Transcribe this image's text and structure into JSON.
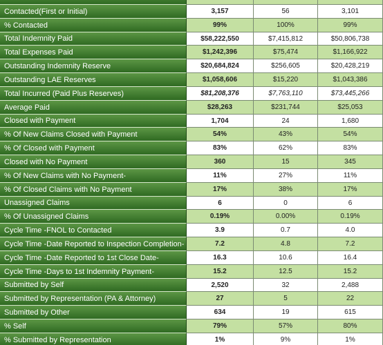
{
  "table": {
    "rows": [
      [
        "Contacted(First or Initial)",
        "3,157",
        "56",
        "3,101"
      ],
      [
        "% Contacted",
        "99%",
        "100%",
        "99%"
      ],
      [
        "Total Indemnity Paid",
        "$58,222,550",
        "$7,415,812",
        "$50,806,738"
      ],
      [
        "Total Expenses Paid",
        "$1,242,396",
        "$75,474",
        "$1,166,922"
      ],
      [
        "Outstanding Indemnity Reserve",
        "$20,684,824",
        "$256,605",
        "$20,428,219"
      ],
      [
        "Outstanding LAE Reserves",
        "$1,058,606",
        "$15,220",
        "$1,043,386"
      ],
      [
        "Total Incurred (Paid Plus Reserves)",
        "$81,208,376",
        "$7,763,110",
        "$73,445,266"
      ],
      [
        "Average Paid",
        "$28,263",
        "$231,744",
        "$25,053"
      ],
      [
        "Closed with Payment",
        "1,704",
        "24",
        "1,680"
      ],
      [
        "% Of New Claims Closed with Payment",
        "54%",
        "43%",
        "54%"
      ],
      [
        "% Of Closed with Payment",
        "83%",
        "62%",
        "83%"
      ],
      [
        "Closed with No Payment",
        "360",
        "15",
        "345"
      ],
      [
        "% Of New Claims with No Payment-",
        "11%",
        "27%",
        "11%"
      ],
      [
        "% Of Closed Claims with No Payment",
        "17%",
        "38%",
        "17%"
      ],
      [
        "Unassigned Claims",
        "6",
        "0",
        "6"
      ],
      [
        "% Of Unassigned Claims",
        "0.19%",
        "0.00%",
        "0.19%"
      ],
      [
        "Cycle Time -FNOL to Contacted",
        "3.9",
        "0.7",
        "4.0"
      ],
      [
        "Cycle Time -Date Reported to Inspection Completion-",
        "7.2",
        "4.8",
        "7.2"
      ],
      [
        "Cycle Time -Date Reported to 1st Close Date-",
        "16.3",
        "10.6",
        "16.4"
      ],
      [
        "Cycle Time -Days to 1st Indemnity Payment-",
        "15.2",
        "12.5",
        "15.2"
      ],
      [
        "Submitted by Self",
        "2,520",
        "32",
        "2,488"
      ],
      [
        "Submitted by Representation (PA & Attorney)",
        "27",
        "5",
        "22"
      ],
      [
        "Submitted by Other",
        "634",
        "19",
        "615"
      ],
      [
        "% Self",
        "79%",
        "57%",
        "80%"
      ],
      [
        "% Submitted by Representation",
        "1%",
        "9%",
        "1%"
      ]
    ]
  }
}
